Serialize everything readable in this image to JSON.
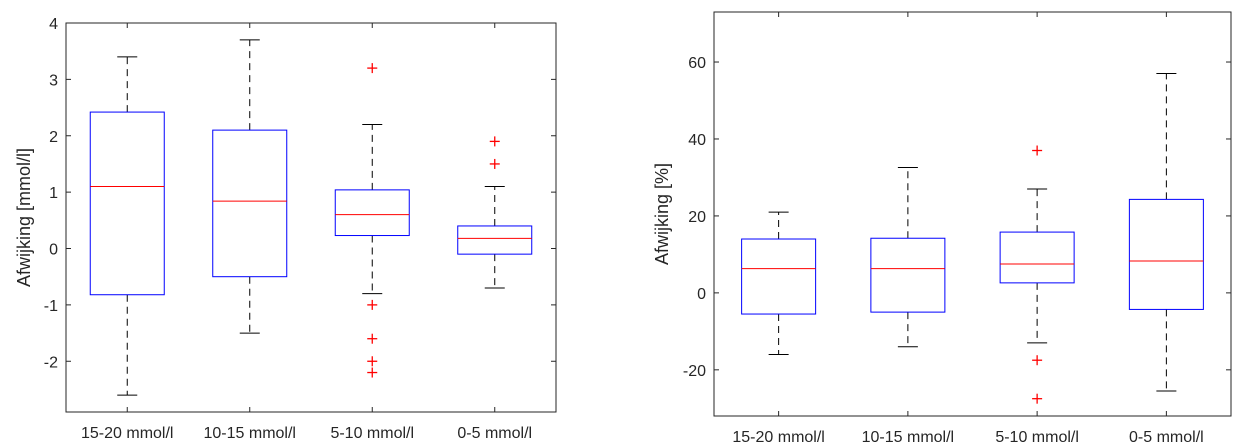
{
  "chart_data": [
    {
      "type": "box",
      "title": "",
      "xlabel": "",
      "ylabel": "Afwijking [mmol/l]",
      "ylim": [
        -2.9,
        4.0
      ],
      "yticks": [
        "-2",
        "-1",
        "0",
        "1",
        "2",
        "3",
        "4"
      ],
      "grid": false,
      "categories": [
        "15-20 mmol/l",
        "10-15 mmol/l",
        "5-10 mmol/l",
        "0-5 mmol/l"
      ],
      "boxes": [
        {
          "whisker_low": -2.6,
          "q1": -0.82,
          "median": 1.1,
          "q3": 2.42,
          "whisker_high": 3.4,
          "outliers": []
        },
        {
          "whisker_low": -1.5,
          "q1": -0.5,
          "median": 0.84,
          "q3": 2.1,
          "whisker_high": 3.7,
          "outliers": []
        },
        {
          "whisker_low": -0.8,
          "q1": 0.23,
          "median": 0.6,
          "q3": 1.04,
          "whisker_high": 2.2,
          "outliers": [
            3.2,
            -1.0,
            -1.6,
            -2.0,
            -2.2
          ]
        },
        {
          "whisker_low": -0.7,
          "q1": -0.1,
          "median": 0.18,
          "q3": 0.4,
          "whisker_high": 1.1,
          "outliers": [
            1.9,
            1.5
          ]
        }
      ]
    },
    {
      "type": "box",
      "title": "",
      "xlabel": "",
      "ylabel": "Afwijking [%]",
      "ylim": [
        -32,
        73
      ],
      "yticks": [
        "-20",
        "0",
        "20",
        "40",
        "60"
      ],
      "grid": false,
      "categories": [
        "15-20 mmol/l",
        "10-15 mmol/l",
        "5-10 mmol/l",
        "0-5 mmol/l"
      ],
      "boxes": [
        {
          "whisker_low": -16,
          "q1": -5.5,
          "median": 6.3,
          "q3": 14,
          "whisker_high": 21,
          "outliers": []
        },
        {
          "whisker_low": -14,
          "q1": -5,
          "median": 6.3,
          "q3": 14.2,
          "whisker_high": 32.6,
          "outliers": []
        },
        {
          "whisker_low": -13,
          "q1": 2.6,
          "median": 7.5,
          "q3": 15.8,
          "whisker_high": 27,
          "outliers": [
            37,
            -17.5,
            -27.5
          ]
        },
        {
          "whisker_low": -25.5,
          "q1": -4.3,
          "median": 8.3,
          "q3": 24.3,
          "whisker_high": 57,
          "outliers": []
        }
      ]
    }
  ],
  "colors": {
    "box": "#0000ff",
    "median": "#ff0000",
    "whisker": "#000000",
    "outlier": "#ff0000",
    "axis": "#262626"
  }
}
